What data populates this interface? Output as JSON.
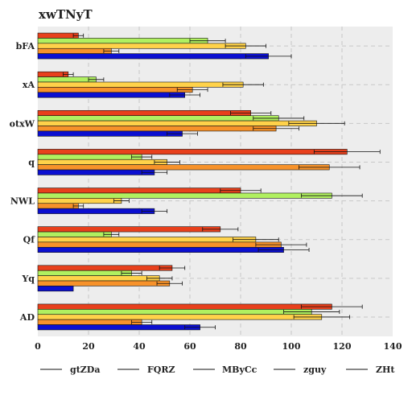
{
  "chart_data": {
    "type": "bar",
    "orientation": "horizontal",
    "title": "xwTNyT",
    "xlabel": "",
    "ylabel": "",
    "categories": [
      "bFA",
      "xA",
      "otxW",
      "q",
      "NWL",
      "Qf",
      "Yq",
      "AD"
    ],
    "xlim": [
      0,
      140
    ],
    "xticks": [
      0,
      20,
      40,
      60,
      80,
      100,
      120,
      140
    ],
    "grid": true,
    "legend_position": "bottom",
    "error_bars": true,
    "series": [
      {
        "name": "gtZDa",
        "color": "#e8401c",
        "values": [
          16,
          12,
          84,
          122,
          80,
          72,
          53,
          116
        ],
        "errors": [
          2,
          2,
          8,
          13,
          8,
          7,
          5,
          12
        ]
      },
      {
        "name": "FQRZ",
        "color": "#b0f060",
        "values": [
          67,
          23,
          95,
          41,
          116,
          29,
          37,
          108
        ],
        "errors": [
          7,
          3,
          10,
          4,
          12,
          3,
          4,
          11
        ]
      },
      {
        "name": "MByCc",
        "color": "#ffd24a",
        "values": [
          82,
          81,
          110,
          51,
          33,
          86,
          48,
          112
        ],
        "errors": [
          8,
          8,
          11,
          5,
          3,
          9,
          5,
          11
        ]
      },
      {
        "name": "zguy",
        "color": "#f7922a",
        "values": [
          29,
          61,
          94,
          115,
          16,
          96,
          52,
          41
        ],
        "errors": [
          3,
          6,
          9,
          12,
          2,
          10,
          5,
          4
        ]
      },
      {
        "name": "ZHt",
        "color": "#0b0fd0",
        "values": [
          91,
          58,
          57,
          46,
          46,
          97,
          14,
          64
        ],
        "errors": [
          9,
          6,
          6,
          5,
          5,
          10,
          0,
          6
        ]
      }
    ]
  }
}
